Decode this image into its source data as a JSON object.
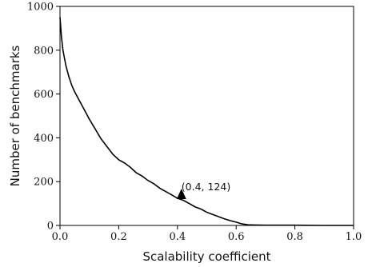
{
  "chart_data": {
    "type": "line",
    "xlabel": "Scalability coefficient",
    "ylabel": "Number of benchmarks",
    "xlim": [
      0,
      1
    ],
    "ylim": [
      0,
      1000
    ],
    "x_ticks": [
      "0.0",
      "0.2",
      "0.4",
      "0.6",
      "0.8",
      "1.0"
    ],
    "y_ticks": [
      "0",
      "200",
      "400",
      "600",
      "800",
      "1000"
    ],
    "grid": false,
    "series": [
      {
        "x": [
          0.0,
          0.005,
          0.01,
          0.02,
          0.03,
          0.04,
          0.05,
          0.07,
          0.09,
          0.1,
          0.12,
          0.14,
          0.16,
          0.18,
          0.2,
          0.22,
          0.24,
          0.26,
          0.28,
          0.3,
          0.32,
          0.34,
          0.36,
          0.38,
          0.4,
          0.42,
          0.44,
          0.46,
          0.48,
          0.5,
          0.52,
          0.54,
          0.56,
          0.58,
          0.6,
          0.62,
          0.64,
          0.66,
          0.7,
          0.8,
          0.9,
          1.0
        ],
        "y": [
          950,
          860,
          800,
          730,
          680,
          640,
          610,
          560,
          510,
          485,
          440,
          395,
          360,
          325,
          300,
          285,
          265,
          240,
          225,
          205,
          190,
          170,
          155,
          140,
          124,
          115,
          100,
          85,
          75,
          60,
          50,
          40,
          30,
          22,
          15,
          7,
          3,
          2,
          1,
          1,
          0,
          0
        ],
        "color": "#000000"
      }
    ],
    "annotation": {
      "text": "(0.4, 124)",
      "x": 0.4,
      "y": 124,
      "marker": "triangle"
    }
  }
}
